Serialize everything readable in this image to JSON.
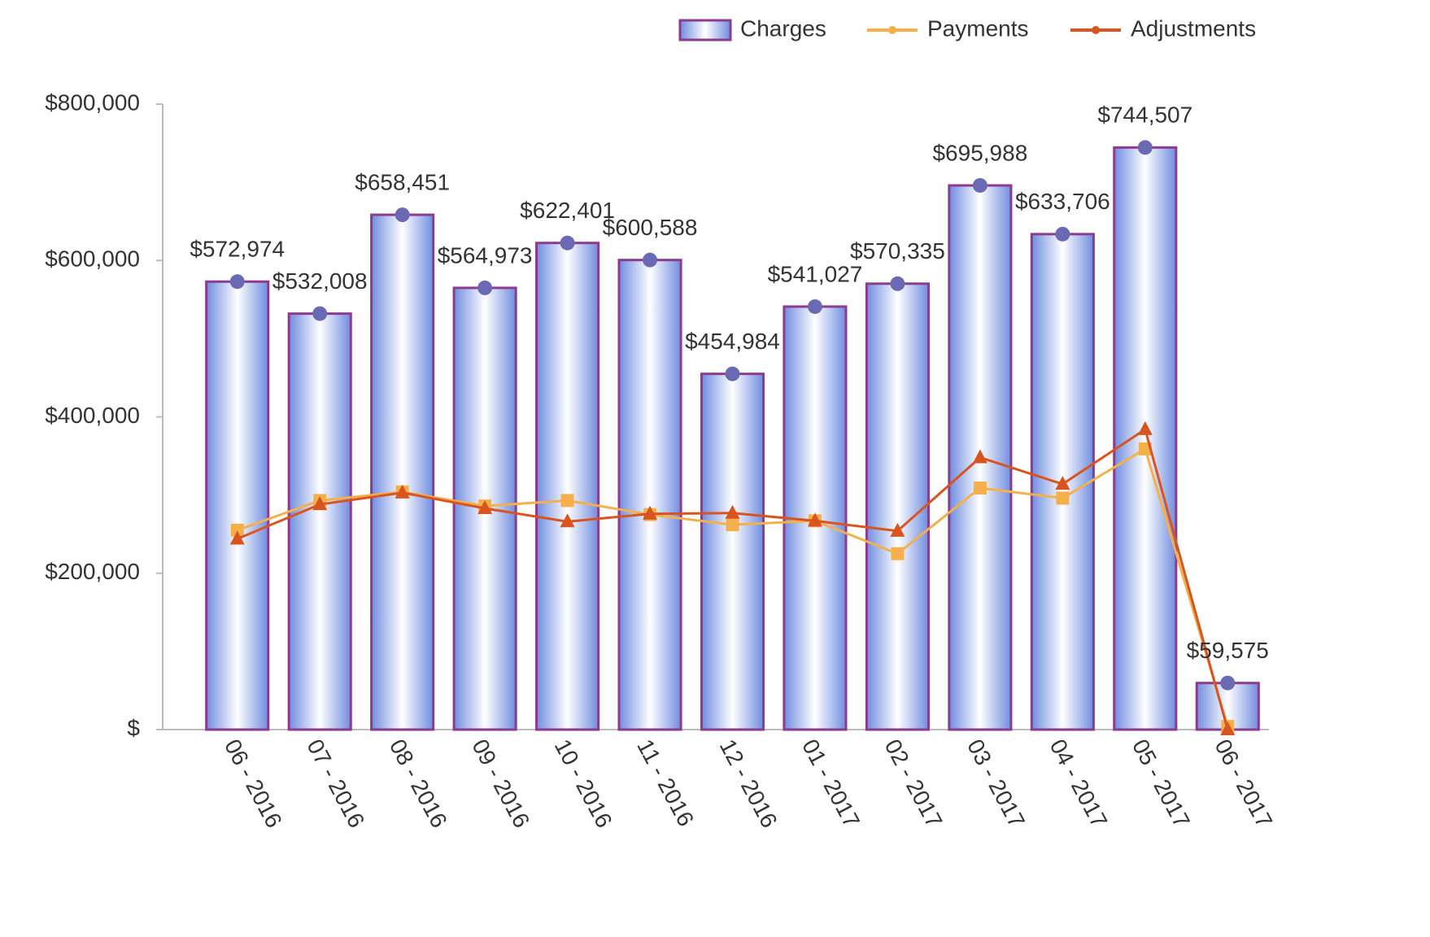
{
  "chart_data": {
    "type": "bar-line",
    "categories": [
      "06 - 2016",
      "07 - 2016",
      "08 - 2016",
      "09 - 2016",
      "10 - 2016",
      "11 - 2016",
      "12 - 2016",
      "01 - 2017",
      "02 - 2017",
      "03 - 2017",
      "04 - 2017",
      "05 - 2017",
      "06 - 2017"
    ],
    "series": [
      {
        "name": "Charges",
        "type": "bar",
        "color": "#6f8de0",
        "border": "#8e3a8e",
        "marker_color": "#6a6ab4",
        "values": [
          572974,
          532008,
          658451,
          564973,
          622401,
          600588,
          454984,
          541027,
          570335,
          695988,
          633706,
          744507,
          59575
        ],
        "value_labels": [
          "$572,974",
          "$532,008",
          "$658,451",
          "$564,973",
          "$622,401",
          "$600,588",
          "$454,984",
          "$541,027",
          "$570,335",
          "$695,988",
          "$633,706",
          "$744,507",
          "$59,575"
        ]
      },
      {
        "name": "Payments",
        "type": "line",
        "color": "#f5b04c",
        "marker": "square",
        "values": [
          255000,
          293000,
          304000,
          286000,
          293000,
          275000,
          262000,
          267000,
          225000,
          309000,
          296000,
          359000,
          4000
        ]
      },
      {
        "name": "Adjustments",
        "type": "line",
        "color": "#d9541e",
        "marker": "triangle",
        "values": [
          244000,
          288000,
          303000,
          283000,
          266000,
          276000,
          277000,
          267000,
          254000,
          348000,
          314000,
          384000,
          0
        ]
      }
    ],
    "ylim": [
      0,
      800000
    ],
    "yticks": [
      {
        "value": 0,
        "label": "$"
      },
      {
        "value": 200000,
        "label": "$200,000"
      },
      {
        "value": 400000,
        "label": "$400,000"
      },
      {
        "value": 600000,
        "label": "$600,000"
      },
      {
        "value": 800000,
        "label": "$800,000"
      }
    ],
    "legend": "top-right",
    "grid": false
  }
}
